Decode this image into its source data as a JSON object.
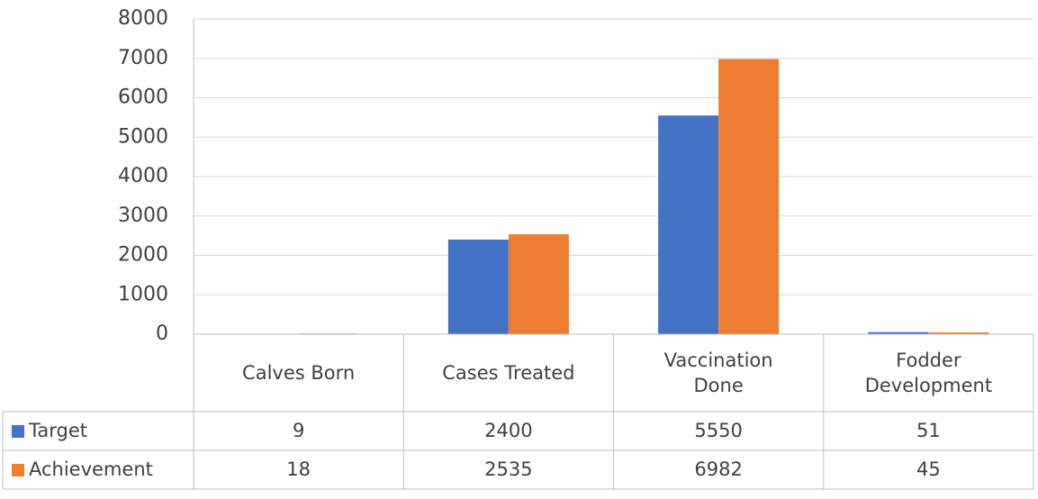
{
  "chart_data": {
    "type": "bar",
    "categories": [
      "Calves Born",
      "Cases Treated",
      "Vaccination Done",
      "Fodder Development"
    ],
    "series": [
      {
        "name": "Target",
        "color": "#4472c4",
        "values": [
          9,
          2400,
          5550,
          51
        ]
      },
      {
        "name": "Achievement",
        "color": "#ed7d31",
        "values": [
          18,
          2535,
          6982,
          45
        ]
      }
    ],
    "ylim": [
      0,
      8000
    ],
    "yticks": [
      0,
      1000,
      2000,
      3000,
      4000,
      5000,
      6000,
      7000,
      8000
    ],
    "grid": true,
    "data_table": true
  }
}
